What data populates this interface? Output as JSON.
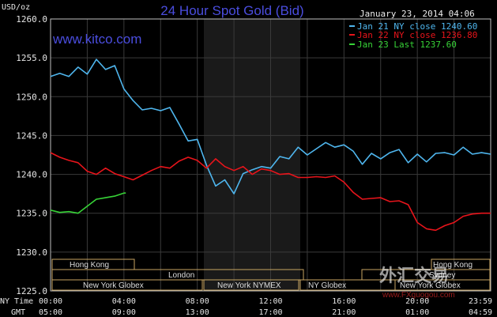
{
  "header": {
    "title": "24 Hour Spot Gold (Bid)",
    "datetime": "January 23, 2014 04:06",
    "site": "www.kitco.com",
    "unit": "USD/oz"
  },
  "legend": [
    {
      "text": "Jan 21 NY close 1240.60",
      "color": "#4fb6ee"
    },
    {
      "text": "Jan 22 NY close 1236.80",
      "color": "#e8141b"
    },
    {
      "text": "Jan 23 Last 1237.60",
      "color": "#37d337"
    }
  ],
  "sessions": {
    "hong_kong": "Hong Kong",
    "london": "London",
    "ny_globex": "New York Globex",
    "ny_nymex": "New York NYMEX",
    "ny_globex_short": "NY Globex",
    "hong_kong_right": "Hong Kong",
    "sydney_right": "Sydney",
    "ny_globex_right": "New York Globex"
  },
  "axis_rows": {
    "ny_label": "NY Time",
    "gmt_label": "GMT",
    "ny_ticks": [
      "00:00",
      "04:00",
      "08:00",
      "12:00",
      "16:00",
      "20:00",
      "23:59"
    ],
    "gmt_ticks": [
      "05:00",
      "09:00",
      "13:00",
      "17:00",
      "21:00",
      "01:00",
      "04:59"
    ]
  },
  "watermark": {
    "text1": "外汇交易",
    "text2": "www.FXguogou.com"
  },
  "chart_data": {
    "type": "line",
    "title": "24 Hour Spot Gold (Bid)",
    "ylabel": "USD/oz",
    "xlabel": "NY Time",
    "ylim": [
      1225,
      1260
    ],
    "xlim_hours": [
      0,
      24
    ],
    "y_ticks": [
      "1260.0",
      "1255.0",
      "1250.0",
      "1245.0",
      "1240.0",
      "1235.0",
      "1230.0",
      "1225.0"
    ],
    "grid": true,
    "legend_position": "top-right",
    "series": [
      {
        "name": "Jan 21 NY close 1240.60",
        "color": "#4fb6ee",
        "points": [
          [
            0,
            1252.6
          ],
          [
            0.5,
            1253.0
          ],
          [
            1.0,
            1252.6
          ],
          [
            1.5,
            1253.8
          ],
          [
            2.0,
            1252.9
          ],
          [
            2.5,
            1254.8
          ],
          [
            3.0,
            1253.5
          ],
          [
            3.5,
            1254.0
          ],
          [
            4.0,
            1251.0
          ],
          [
            4.5,
            1249.5
          ],
          [
            5.0,
            1248.3
          ],
          [
            5.5,
            1248.5
          ],
          [
            6.0,
            1248.2
          ],
          [
            6.5,
            1248.6
          ],
          [
            7.0,
            1246.5
          ],
          [
            7.5,
            1244.3
          ],
          [
            8.0,
            1244.5
          ],
          [
            8.5,
            1241.2
          ],
          [
            9.0,
            1238.5
          ],
          [
            9.5,
            1239.3
          ],
          [
            10.0,
            1237.5
          ],
          [
            10.5,
            1240.1
          ],
          [
            11.0,
            1240.6
          ],
          [
            11.5,
            1241.0
          ],
          [
            12.0,
            1240.8
          ],
          [
            12.5,
            1242.3
          ],
          [
            13.0,
            1242.0
          ],
          [
            13.5,
            1243.5
          ],
          [
            14.0,
            1242.5
          ],
          [
            14.5,
            1243.3
          ],
          [
            15.0,
            1244.1
          ],
          [
            15.5,
            1243.5
          ],
          [
            16.0,
            1243.8
          ],
          [
            16.5,
            1243.0
          ],
          [
            17.0,
            1241.3
          ],
          [
            17.5,
            1242.7
          ],
          [
            18.0,
            1242.0
          ],
          [
            18.5,
            1242.8
          ],
          [
            19.0,
            1243.2
          ],
          [
            19.5,
            1241.5
          ],
          [
            20.0,
            1242.6
          ],
          [
            20.5,
            1241.6
          ],
          [
            21.0,
            1242.7
          ],
          [
            21.5,
            1242.8
          ],
          [
            22.0,
            1242.5
          ],
          [
            22.5,
            1243.5
          ],
          [
            23.0,
            1242.6
          ],
          [
            23.5,
            1242.8
          ],
          [
            24.0,
            1242.6
          ]
        ]
      },
      {
        "name": "Jan 22 NY close 1236.80",
        "color": "#e8141b",
        "points": [
          [
            0,
            1242.8
          ],
          [
            0.5,
            1242.2
          ],
          [
            1.0,
            1241.8
          ],
          [
            1.5,
            1241.5
          ],
          [
            2.0,
            1240.4
          ],
          [
            2.5,
            1240.0
          ],
          [
            3.0,
            1240.8
          ],
          [
            3.5,
            1240.1
          ],
          [
            4.0,
            1239.7
          ],
          [
            4.5,
            1239.3
          ],
          [
            5.0,
            1239.9
          ],
          [
            5.5,
            1240.5
          ],
          [
            6.0,
            1241.0
          ],
          [
            6.5,
            1240.8
          ],
          [
            7.0,
            1241.7
          ],
          [
            7.5,
            1242.2
          ],
          [
            8.0,
            1241.8
          ],
          [
            8.5,
            1240.8
          ],
          [
            9.0,
            1242.0
          ],
          [
            9.5,
            1241.0
          ],
          [
            10.0,
            1240.5
          ],
          [
            10.5,
            1241.0
          ],
          [
            11.0,
            1240.0
          ],
          [
            11.5,
            1240.7
          ],
          [
            12.0,
            1240.5
          ],
          [
            12.5,
            1240.0
          ],
          [
            13.0,
            1240.1
          ],
          [
            13.5,
            1239.6
          ],
          [
            14.0,
            1239.6
          ],
          [
            14.5,
            1239.7
          ],
          [
            15.0,
            1239.6
          ],
          [
            15.5,
            1239.8
          ],
          [
            16.0,
            1239.0
          ],
          [
            16.5,
            1237.7
          ],
          [
            17.0,
            1236.8
          ],
          [
            17.5,
            1236.9
          ],
          [
            18.0,
            1237.0
          ],
          [
            18.5,
            1236.5
          ],
          [
            19.0,
            1236.6
          ],
          [
            19.5,
            1236.1
          ],
          [
            20.0,
            1233.8
          ],
          [
            20.5,
            1233.0
          ],
          [
            21.0,
            1232.8
          ],
          [
            21.5,
            1233.4
          ],
          [
            22.0,
            1233.8
          ],
          [
            22.5,
            1234.6
          ],
          [
            23.0,
            1234.9
          ],
          [
            23.5,
            1235.0
          ],
          [
            24.0,
            1235.0
          ]
        ]
      },
      {
        "name": "Jan 23 Last 1237.60",
        "color": "#37d337",
        "points": [
          [
            0,
            1235.4
          ],
          [
            0.5,
            1235.1
          ],
          [
            1.0,
            1235.2
          ],
          [
            1.5,
            1235.0
          ],
          [
            2.0,
            1235.9
          ],
          [
            2.5,
            1236.8
          ],
          [
            3.0,
            1237.0
          ],
          [
            3.5,
            1237.2
          ],
          [
            4.0,
            1237.6
          ],
          [
            4.1,
            1237.6
          ]
        ]
      }
    ]
  }
}
